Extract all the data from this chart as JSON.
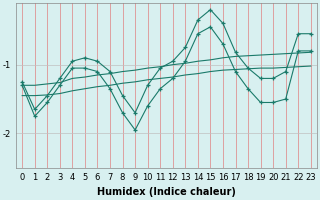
{
  "xlabel": "Humidex (Indice chaleur)",
  "x": [
    0,
    1,
    2,
    3,
    4,
    5,
    6,
    7,
    8,
    9,
    10,
    11,
    12,
    13,
    14,
    15,
    16,
    17,
    18,
    19,
    20,
    21,
    22,
    23
  ],
  "line1": [
    -1.3,
    -1.75,
    -1.55,
    -1.3,
    -1.05,
    -1.05,
    -1.1,
    -1.35,
    -1.7,
    -1.95,
    -1.6,
    -1.35,
    -1.2,
    -0.95,
    -0.55,
    -0.45,
    -0.7,
    -1.1,
    -1.35,
    -1.55,
    -1.55,
    -1.5,
    -0.8,
    -0.8
  ],
  "line2": [
    -1.25,
    -1.65,
    -1.45,
    -1.2,
    -0.95,
    -0.9,
    -0.95,
    -1.1,
    -1.45,
    -1.7,
    -1.3,
    -1.05,
    -0.95,
    -0.75,
    -0.35,
    -0.2,
    -0.4,
    -0.82,
    -1.05,
    -1.2,
    -1.2,
    -1.1,
    -0.55,
    -0.55
  ],
  "line3": [
    -1.3,
    -1.3,
    -1.28,
    -1.26,
    -1.2,
    -1.18,
    -1.15,
    -1.13,
    -1.1,
    -1.08,
    -1.05,
    -1.03,
    -1.0,
    -0.98,
    -0.95,
    -0.93,
    -0.9,
    -0.88,
    -0.87,
    -0.86,
    -0.85,
    -0.84,
    -0.83,
    -0.82
  ],
  "line4": [
    -1.45,
    -1.45,
    -1.44,
    -1.42,
    -1.38,
    -1.35,
    -1.32,
    -1.3,
    -1.27,
    -1.25,
    -1.22,
    -1.2,
    -1.18,
    -1.15,
    -1.13,
    -1.1,
    -1.08,
    -1.07,
    -1.06,
    -1.05,
    -1.05,
    -1.04,
    -1.03,
    -1.02
  ],
  "ylim": [
    -2.5,
    -0.1
  ],
  "yticks": [
    -2,
    -1
  ],
  "color": "#1a7a6a",
  "bg_color": "#d8f0f0",
  "grid_color": "#c0c0c0",
  "vgrid_color": "#e08080",
  "figsize": [
    3.2,
    2.0
  ],
  "dpi": 100
}
